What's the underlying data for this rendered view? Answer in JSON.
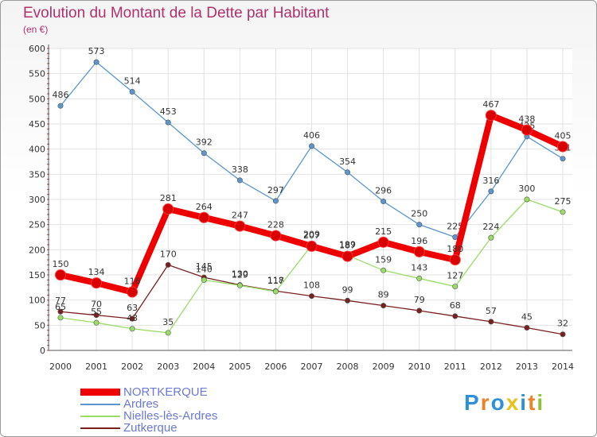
{
  "chart_data": {
    "type": "line",
    "title": "Evolution du Montant de la Dette par Habitant",
    "subtitle": "(en €)",
    "x": [
      "2000",
      "2001",
      "2002",
      "2003",
      "2004",
      "2005",
      "2006",
      "2007",
      "2008",
      "2009",
      "2010",
      "2011",
      "2012",
      "2013",
      "2014"
    ],
    "yticks": [
      0,
      50,
      100,
      150,
      200,
      250,
      300,
      350,
      400,
      450,
      500,
      550,
      600
    ],
    "ylim": [
      0,
      600
    ],
    "grid": true,
    "legend_position": "bottom-left",
    "series": [
      {
        "name": "NORTKERQUE",
        "color": "#ee0000",
        "values": [
          150,
          134,
          116,
          281,
          264,
          247,
          228,
          207,
          187,
          215,
          196,
          180,
          467,
          438,
          405
        ]
      },
      {
        "name": "Ardres",
        "color": "#5b96cf",
        "values": [
          486,
          573,
          514,
          453,
          392,
          338,
          297,
          406,
          354,
          296,
          250,
          225,
          316,
          425,
          381
        ]
      },
      {
        "name": "Nielles-lès-Ardres",
        "color": "#99dd66",
        "values": [
          65,
          55,
          43,
          35,
          140,
          129,
          117,
          209,
          189,
          159,
          143,
          127,
          224,
          300,
          275
        ]
      },
      {
        "name": "Zutkerque",
        "color": "#7a1f1f",
        "values": [
          77,
          70,
          63,
          170,
          145,
          130,
          118,
          108,
          99,
          89,
          79,
          68,
          57,
          45,
          32
        ]
      }
    ]
  },
  "logo": {
    "letters": [
      "P",
      "r",
      "o",
      "x",
      "i",
      "t",
      "i"
    ],
    "colors": [
      "#2f8fd8",
      "#e8842a",
      "#2f8fd8",
      "#e8c21a",
      "#2f8fd8",
      "#e8842a",
      "#8fc23a"
    ]
  }
}
